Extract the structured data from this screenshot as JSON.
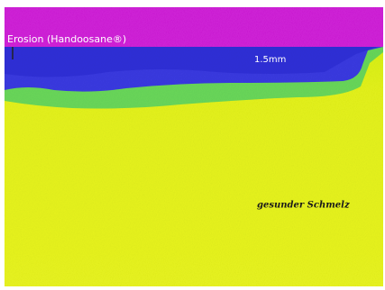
{
  "labels": {
    "title": "Erosion (Handoosane®)",
    "scale": "1.5mm",
    "region": "gesunder Schmelz"
  }
}
